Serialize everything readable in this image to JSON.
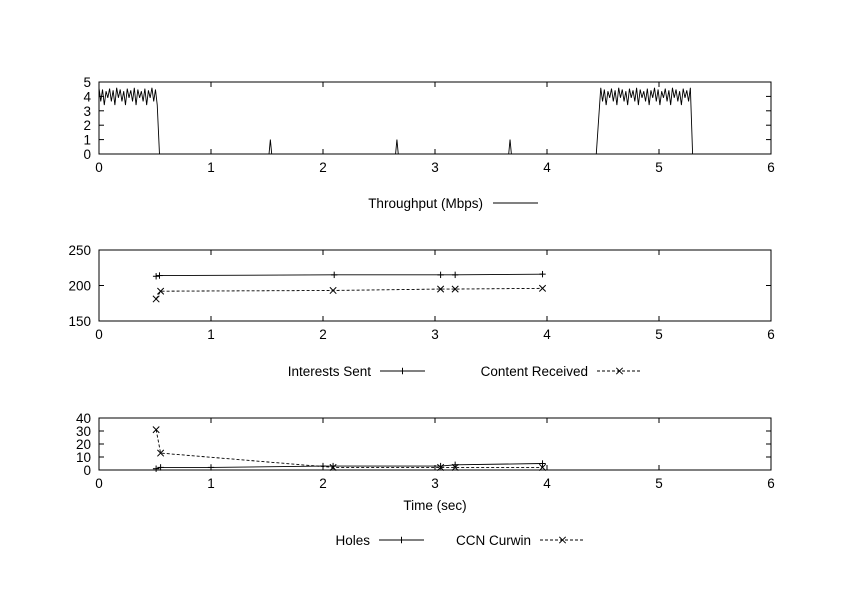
{
  "chart_data": [
    {
      "type": "line",
      "xlim": [
        0,
        6
      ],
      "ylim": [
        0,
        5
      ],
      "x_ticks": [
        "0",
        "1",
        "2",
        "3",
        "4",
        "5",
        "6"
      ],
      "y_ticks": [
        "0",
        "1",
        "2",
        "3",
        "4",
        "5"
      ],
      "legend_position": "bottom",
      "series": [
        {
          "name": "Throughput (Mbps)",
          "style": "solid",
          "marker": "none",
          "segments": [
            {
              "kind": "burst",
              "x_start": 0.0,
              "x_end": 0.52,
              "y_high": 4.6,
              "y_low": 3.4,
              "x_drop": 0.54
            },
            {
              "kind": "spike",
              "x": 1.53,
              "y": 1.0
            },
            {
              "kind": "spike",
              "x": 2.66,
              "y": 1.0
            },
            {
              "kind": "spike",
              "x": 3.67,
              "y": 1.0
            },
            {
              "kind": "burst",
              "x_start": 4.48,
              "x_end": 5.28,
              "y_high": 4.6,
              "y_low": 3.4,
              "x_rise": 4.44,
              "x_drop": 5.3
            }
          ]
        }
      ]
    },
    {
      "type": "line",
      "xlim": [
        0,
        6
      ],
      "ylim": [
        150,
        250
      ],
      "x_ticks": [
        "0",
        "1",
        "2",
        "3",
        "4",
        "5",
        "6"
      ],
      "y_ticks": [
        "150",
        "200",
        "250"
      ],
      "legend_position": "bottom",
      "series": [
        {
          "name": "Interests Sent",
          "style": "solid",
          "marker": "plus",
          "x": [
            0.51,
            0.54,
            2.1,
            3.05,
            3.18,
            3.96
          ],
          "y": [
            213,
            214,
            215,
            215,
            215,
            216
          ]
        },
        {
          "name": "Content Received",
          "style": "dashed",
          "marker": "cross",
          "x": [
            0.51,
            0.55,
            2.09,
            3.05,
            3.18,
            3.96
          ],
          "y": [
            181,
            192,
            193,
            195,
            195,
            196
          ]
        }
      ]
    },
    {
      "type": "line",
      "xlim": [
        0,
        6
      ],
      "ylim": [
        0,
        40
      ],
      "x_ticks": [
        "0",
        "1",
        "2",
        "3",
        "4",
        "5",
        "6"
      ],
      "y_ticks": [
        "0",
        "10",
        "20",
        "30",
        "40"
      ],
      "xlabel": "Time (sec)",
      "legend_position": "bottom",
      "series": [
        {
          "name": "Holes",
          "style": "solid",
          "marker": "plus",
          "x": [
            0.51,
            0.55,
            1.0,
            2.0,
            2.09,
            3.05,
            3.18,
            3.96
          ],
          "y": [
            1,
            2,
            2,
            3,
            3,
            3,
            4,
            5
          ]
        },
        {
          "name": "CCN Curwin",
          "style": "dashed",
          "marker": "cross",
          "x": [
            0.51,
            0.55,
            2.09,
            3.05,
            3.18,
            3.96
          ],
          "y": [
            31,
            13,
            2,
            2,
            2,
            2
          ]
        }
      ]
    }
  ]
}
